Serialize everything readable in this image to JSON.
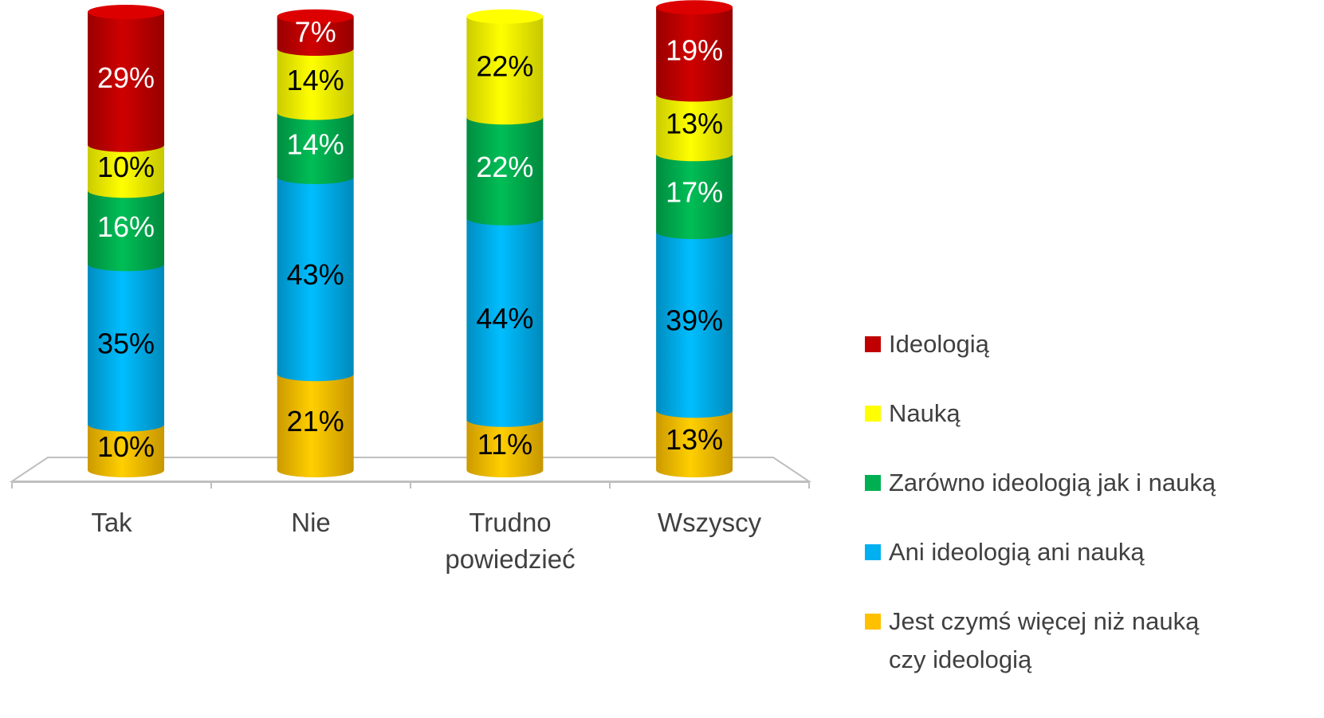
{
  "chart_data": {
    "type": "stacked-cylinder",
    "categories": [
      "Tak",
      "Nie",
      "Trudno powiedzieć",
      "Wszyscy"
    ],
    "ylim": [
      0,
      100
    ],
    "series": [
      {
        "name": "Jest czymś więcej niż nauką czy ideologią",
        "color": "#FFC000",
        "label_color": "#000000",
        "values": [
          10,
          21,
          11,
          13
        ],
        "value_labels": [
          "10%",
          "21%",
          "11%",
          "13%"
        ]
      },
      {
        "name": "Ani ideologią ani nauką",
        "color": "#00B0F0",
        "label_color": "#000000",
        "values": [
          35,
          43,
          44,
          39
        ],
        "value_labels": [
          "35%",
          "43%",
          "44%",
          "39%"
        ]
      },
      {
        "name": "Zarówno ideologią jak i nauką",
        "color": "#00B050",
        "label_color": "#FFFFFF",
        "values": [
          16,
          14,
          22,
          17
        ],
        "value_labels": [
          "16%",
          "14%",
          "22%",
          "17%"
        ]
      },
      {
        "name": "Nauką",
        "color": "#FFFF00",
        "label_color": "#000000",
        "values": [
          10,
          14,
          22,
          13
        ],
        "value_labels": [
          "10%",
          "14%",
          "22%",
          "13%"
        ]
      },
      {
        "name": "Ideologią",
        "color": "#C00000",
        "label_color": "#FFFFFF",
        "values": [
          29,
          7,
          null,
          19
        ],
        "value_labels": [
          "29%",
          "7%",
          null,
          "19%"
        ]
      }
    ],
    "legend": "right"
  }
}
